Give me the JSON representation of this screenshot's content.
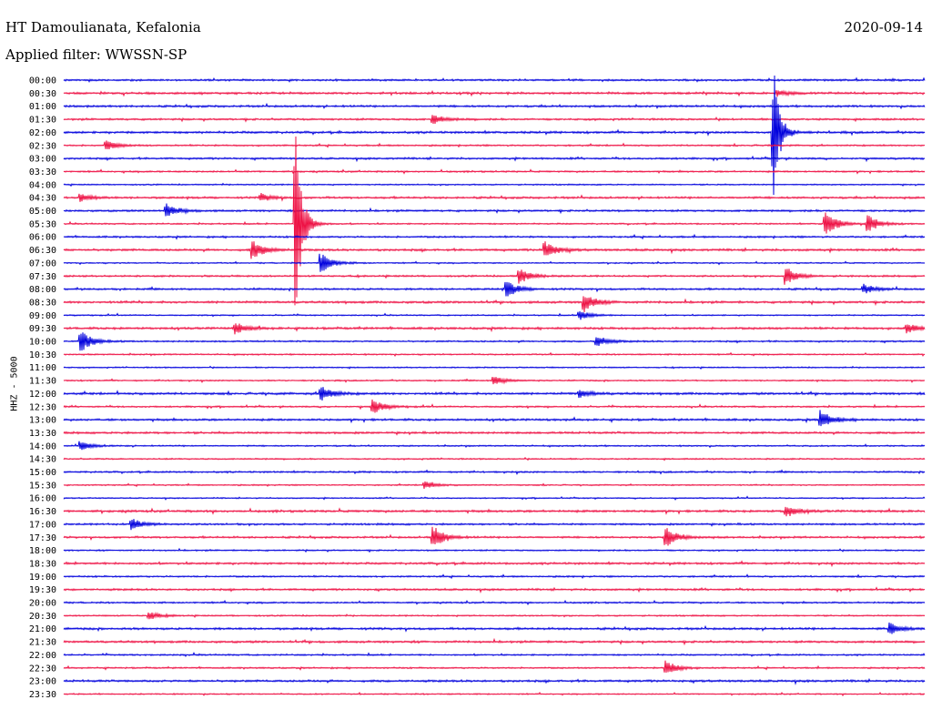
{
  "header": {
    "station": "HT Damoulianata, Kefalonia",
    "filter": "Applied filter: WWSSN-SP",
    "date": "2020-09-14",
    "channel": "HHZ - 5000"
  },
  "colors": {
    "even": "#0000dd",
    "odd": "#ee1144"
  },
  "chart_data": {
    "type": "line",
    "title": "HT Damoulianata, Kefalonia",
    "tick_labels": [
      "00:00",
      "00:30",
      "01:00",
      "01:30",
      "02:00",
      "02:30",
      "03:00",
      "03:30",
      "04:00",
      "04:30",
      "05:00",
      "05:30",
      "06:00",
      "06:30",
      "07:00",
      "07:30",
      "08:00",
      "08:30",
      "09:00",
      "09:30",
      "10:00",
      "10:30",
      "11:00",
      "11:30",
      "12:00",
      "12:30",
      "13:00",
      "13:30",
      "14:00",
      "14:30",
      "15:00",
      "15:30",
      "16:00",
      "16:30",
      "17:00",
      "17:30",
      "18:00",
      "18:30",
      "19:00",
      "19:30",
      "20:00",
      "20:30",
      "21:00",
      "21:30",
      "22:00",
      "22:30",
      "23:00",
      "23:30"
    ],
    "line_minutes": 30,
    "events": [
      {
        "line": "00:30",
        "t": 0.83,
        "amp": 3
      },
      {
        "line": "01:30",
        "t": 0.43,
        "amp": 5
      },
      {
        "line": "02:30",
        "t": 0.05,
        "amp": 5
      },
      {
        "line": "02:00",
        "t": 0.825,
        "amp": 70
      },
      {
        "line": "04:30",
        "t": 0.02,
        "amp": 4
      },
      {
        "line": "04:30",
        "t": 0.23,
        "amp": 4
      },
      {
        "line": "05:00",
        "t": 0.12,
        "amp": 7
      },
      {
        "line": "05:30",
        "t": 0.27,
        "amp": 105
      },
      {
        "line": "05:30",
        "t": 0.885,
        "amp": 14
      },
      {
        "line": "05:30",
        "t": 0.935,
        "amp": 9
      },
      {
        "line": "06:30",
        "t": 0.22,
        "amp": 11
      },
      {
        "line": "06:30",
        "t": 0.56,
        "amp": 9
      },
      {
        "line": "07:00",
        "t": 0.3,
        "amp": 10
      },
      {
        "line": "07:30",
        "t": 0.53,
        "amp": 8
      },
      {
        "line": "07:30",
        "t": 0.84,
        "amp": 9
      },
      {
        "line": "08:00",
        "t": 0.515,
        "amp": 9
      },
      {
        "line": "08:00",
        "t": 0.93,
        "amp": 5
      },
      {
        "line": "08:30",
        "t": 0.605,
        "amp": 10
      },
      {
        "line": "09:00",
        "t": 0.6,
        "amp": 5
      },
      {
        "line": "09:30",
        "t": 0.2,
        "amp": 6
      },
      {
        "line": "09:30",
        "t": 0.98,
        "amp": 5
      },
      {
        "line": "10:00",
        "t": 0.02,
        "amp": 12
      },
      {
        "line": "10:00",
        "t": 0.62,
        "amp": 6
      },
      {
        "line": "11:30",
        "t": 0.5,
        "amp": 5
      },
      {
        "line": "12:00",
        "t": 0.3,
        "amp": 8
      },
      {
        "line": "12:00",
        "t": 0.6,
        "amp": 4
      },
      {
        "line": "12:30",
        "t": 0.36,
        "amp": 8
      },
      {
        "line": "13:00",
        "t": 0.88,
        "amp": 10
      },
      {
        "line": "14:00",
        "t": 0.02,
        "amp": 5
      },
      {
        "line": "15:30",
        "t": 0.42,
        "amp": 4
      },
      {
        "line": "16:30",
        "t": 0.84,
        "amp": 6
      },
      {
        "line": "17:00",
        "t": 0.08,
        "amp": 6
      },
      {
        "line": "17:30",
        "t": 0.43,
        "amp": 12
      },
      {
        "line": "17:30",
        "t": 0.7,
        "amp": 11
      },
      {
        "line": "20:30",
        "t": 0.1,
        "amp": 4
      },
      {
        "line": "21:00",
        "t": 0.96,
        "amp": 6
      },
      {
        "line": "22:30",
        "t": 0.7,
        "amp": 8
      }
    ]
  }
}
